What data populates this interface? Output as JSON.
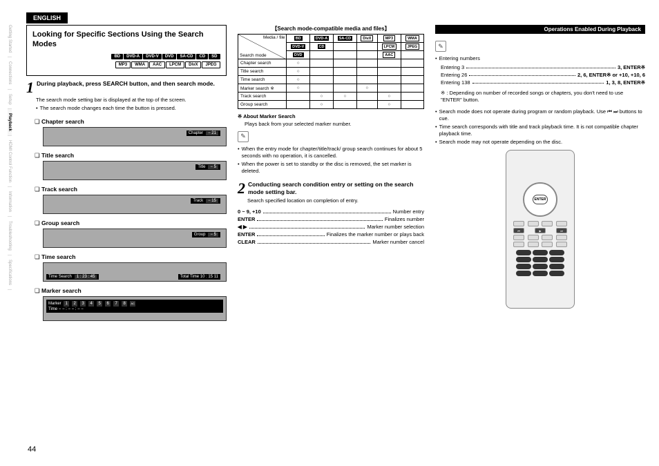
{
  "lang": "ENGLISH",
  "sidebar": [
    "Getting Started",
    "Connections",
    "Setup",
    "Playback",
    "HDMI Control Function",
    "Information",
    "Troubleshooting",
    "Specifications"
  ],
  "sidebar_active": 3,
  "ops_header": "Operations Enabled During Playback",
  "box_title": "Looking for Specific Sections Using the Search Modes",
  "chips_row1": [
    "BD",
    "DVD-A",
    "DVD-V",
    "DVD",
    "SA-CD",
    "CD",
    "SD"
  ],
  "chips_row2": [
    "MP3",
    "WMA",
    "AAC",
    "LPCM",
    "DivX",
    "JPEG"
  ],
  "step1": {
    "num": "1",
    "text": "During playback, press SEARCH button, and then search mode.",
    "body": "The search mode setting bar is displayed at the top of the screen.",
    "bullet": "The search mode changes each time the button is pressed."
  },
  "searches": {
    "chapter": {
      "h": "Chapter search",
      "label": "Chapter",
      "val": "− 21"
    },
    "title": {
      "h": "Title search",
      "label": "Title",
      "val": "− 5"
    },
    "track": {
      "h": "Track search",
      "label": "Track",
      "val": "− 15"
    },
    "group": {
      "h": "Group search",
      "label": "Group",
      "val": "− 5"
    },
    "time": {
      "h": "Time search",
      "label": "Time Search",
      "val": "1 : 23 : 45",
      "extra": "Total Time 10 : 15 11"
    },
    "marker": {
      "h": "Marker search",
      "label": "Marker",
      "time": "Time − − : − − : − −"
    }
  },
  "table": {
    "title": "【Search mode-compatible media and files】",
    "corner": "Media / file",
    "corner2": "Search mode",
    "head1": [
      "BD",
      "DVD-A",
      "SA-CD",
      "DivX",
      "MP3",
      "WMA"
    ],
    "head2": [
      "DVD-V",
      "CD",
      "",
      "",
      "LPCM",
      "JPEG"
    ],
    "head3": [
      "DVD",
      "",
      "",
      "",
      "AAC",
      ""
    ],
    "rows": [
      {
        "n": "Chapter search",
        "c": [
          1,
          0,
          0,
          0,
          0,
          0
        ]
      },
      {
        "n": "Title search",
        "c": [
          1,
          0,
          0,
          0,
          0,
          0
        ]
      },
      {
        "n": "Time search",
        "c": [
          1,
          0,
          0,
          0,
          0,
          0
        ]
      },
      {
        "n": "Marker search ※",
        "c": [
          1,
          0,
          0,
          1,
          0,
          0
        ]
      },
      {
        "n": "Track search",
        "c": [
          0,
          1,
          1,
          0,
          1,
          0
        ]
      },
      {
        "n": "Group search",
        "c": [
          0,
          1,
          0,
          0,
          1,
          0
        ]
      }
    ]
  },
  "marker_section": {
    "title": "About Marker Search",
    "sub": "Plays back from your selected marker number.",
    "b1": "When the entry mode for chapter/title/track/ group search continues for about 5 seconds with no operation, it is cancelled.",
    "b2": "When the power is set to standby or the disc is removed, the set marker is deleted."
  },
  "step2": {
    "num": "2",
    "text": "Conducting search condition entry or setting on the search mode setting bar.",
    "body": "Search specified location on completion of entry."
  },
  "keys": [
    {
      "k": "0 ~ 9, +10",
      "v": "Number entry"
    },
    {
      "k": "ENTER",
      "v": "Finalizes number"
    },
    {
      "k": "◀ ▶",
      "v": "Marker number selection",
      "tri": true
    },
    {
      "k": "ENTER",
      "v": "Finalizes the marker number or plays back"
    },
    {
      "k": "CLEAR",
      "v": "Marker number cancel"
    }
  ],
  "col3": {
    "entering": "Entering numbers",
    "examples": [
      {
        "k": "Entering 3",
        "v": "3, ENTER※"
      },
      {
        "k": "Entering 26",
        "v": "2, 6, ENTER※ or +10, +10, 6"
      },
      {
        "k": "Entering 138",
        "v": "1, 3, 8, ENTER※"
      }
    ],
    "note": "※ : Depending on number of recorded songs or chapters, you don't need to use \"ENTER\" button.",
    "bul1": "Search mode does not operate during program or random playback. Use ⏮ ⏭ buttons to cue.",
    "bul2": "Time search corresponds with title and track playback time. It is not compatible chapter playback time.",
    "bul3": "Search mode may not operate depending on the disc."
  },
  "remote_enter": "ENTER",
  "page_num": "44"
}
